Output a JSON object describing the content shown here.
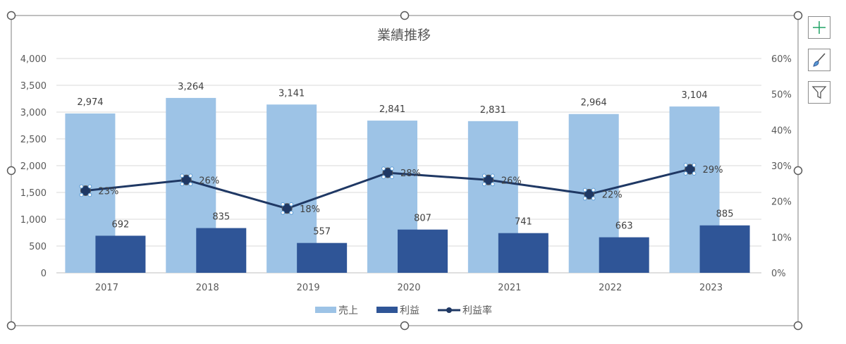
{
  "chart_data": {
    "type": "bar",
    "title": "業績推移",
    "categories": [
      "2017",
      "2018",
      "2019",
      "2020",
      "2021",
      "2022",
      "2023"
    ],
    "series": [
      {
        "name": "売上",
        "type": "bar",
        "axis": "left",
        "color": "#9DC3E6",
        "values": [
          2974,
          3264,
          3141,
          2841,
          2831,
          2964,
          3104
        ],
        "labels": [
          "2,974",
          "3,264",
          "3,141",
          "2,841",
          "2,831",
          "2,964",
          "3,104"
        ]
      },
      {
        "name": "利益",
        "type": "bar",
        "axis": "left",
        "color": "#2F5597",
        "values": [
          692,
          835,
          557,
          807,
          741,
          663,
          885
        ],
        "labels": [
          "692",
          "835",
          "557",
          "807",
          "741",
          "663",
          "885"
        ]
      },
      {
        "name": "利益率",
        "type": "line",
        "axis": "right",
        "color": "#1F3864",
        "values": [
          0.23,
          0.26,
          0.18,
          0.28,
          0.26,
          0.22,
          0.29
        ],
        "labels": [
          "23%",
          "26%",
          "18%",
          "28%",
          "26%",
          "22%",
          "29%"
        ]
      }
    ],
    "y_left": {
      "min": 0,
      "max": 4000,
      "step": 500,
      "ticks": [
        "0",
        "500",
        "1,000",
        "1,500",
        "2,000",
        "2,500",
        "3,000",
        "3,500",
        "4,000"
      ]
    },
    "y_right": {
      "min": 0,
      "max": 0.6,
      "step": 0.1,
      "ticks": [
        "0%",
        "10%",
        "20%",
        "30%",
        "40%",
        "50%",
        "60%"
      ]
    },
    "grid": true,
    "legend": "bottom"
  },
  "chart_tools": {
    "elements_icon": "plus-icon",
    "styles_icon": "brush-icon",
    "filters_icon": "funnel-icon"
  }
}
